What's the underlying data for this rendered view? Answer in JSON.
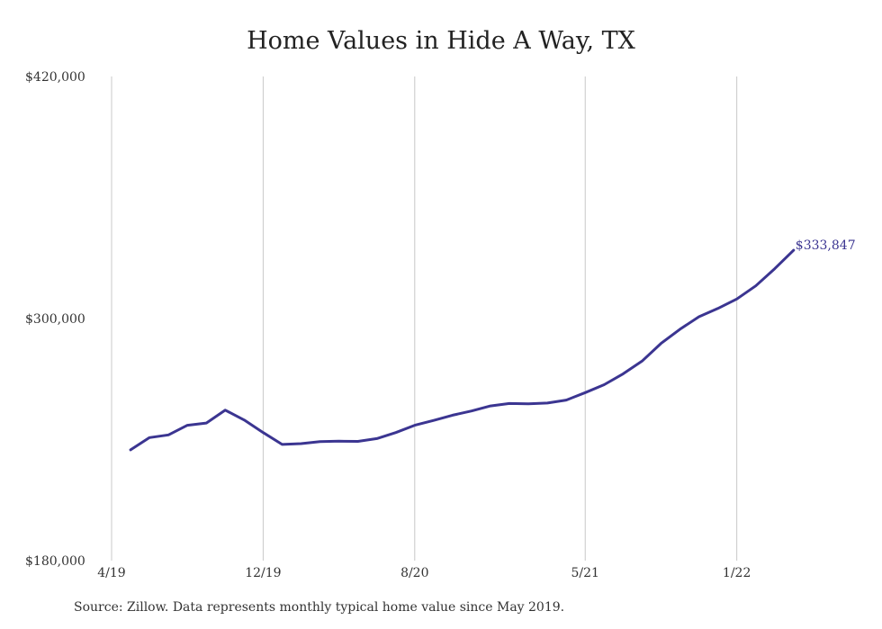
{
  "chart_data": {
    "type": "line",
    "title": "Home Values in Hide A Way, TX",
    "xlabel": "",
    "ylabel": "",
    "ylim": [
      180000,
      420000
    ],
    "y_ticks": [
      180000,
      300000,
      420000
    ],
    "y_tick_labels": [
      "$180,000",
      "$300,000",
      "$420,000"
    ],
    "x_ticks": [
      {
        "label": "4/19",
        "index": -1
      },
      {
        "label": "12/19",
        "index": 7
      },
      {
        "label": "8/20",
        "index": 15
      },
      {
        "label": "5/21",
        "index": 24
      },
      {
        "label": "1/22",
        "index": 32
      }
    ],
    "grid": "vertical",
    "color": "#3b3591",
    "end_label": "$333,847",
    "series": [
      {
        "values": [
          234900,
          241000,
          242300,
          247100,
          248200,
          254600,
          249700,
          243500,
          237600,
          238000,
          239000,
          239200,
          239100,
          240500,
          243500,
          247100,
          249500,
          252100,
          254200,
          256700,
          257900,
          257700,
          258100,
          259600,
          263300,
          267200,
          272600,
          278900,
          287700,
          294700,
          300900,
          305000,
          309700,
          316200,
          324700,
          333847
        ]
      }
    ]
  },
  "source": "Source: Zillow. Data represents monthly typical home value since May 2019."
}
